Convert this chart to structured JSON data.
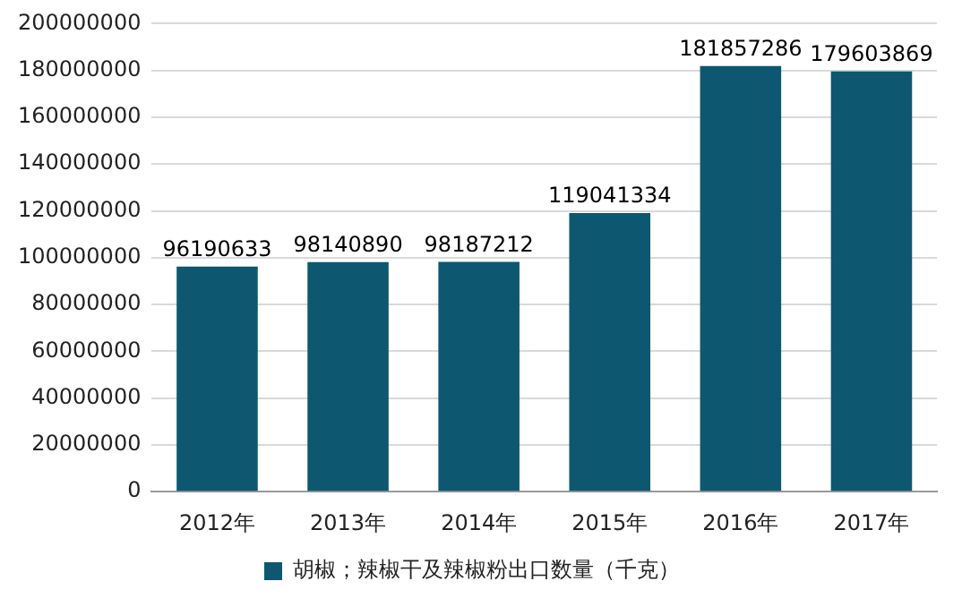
{
  "chart_data": {
    "type": "bar",
    "categories": [
      "2012年",
      "2013年",
      "2014年",
      "2015年",
      "2016年",
      "2017年"
    ],
    "series": [
      {
        "name": "胡椒；辣椒干及辣椒粉出口数量（千克）",
        "color": "#0d5870",
        "values": [
          96190633,
          98140890,
          98187212,
          119041334,
          181857286,
          179603869
        ]
      }
    ],
    "ylim": [
      0,
      200000000
    ],
    "yticks": [
      0,
      20000000,
      40000000,
      60000000,
      80000000,
      100000000,
      120000000,
      140000000,
      160000000,
      180000000,
      200000000
    ],
    "grid": "y",
    "legend": "bottom",
    "data_labels": true
  }
}
